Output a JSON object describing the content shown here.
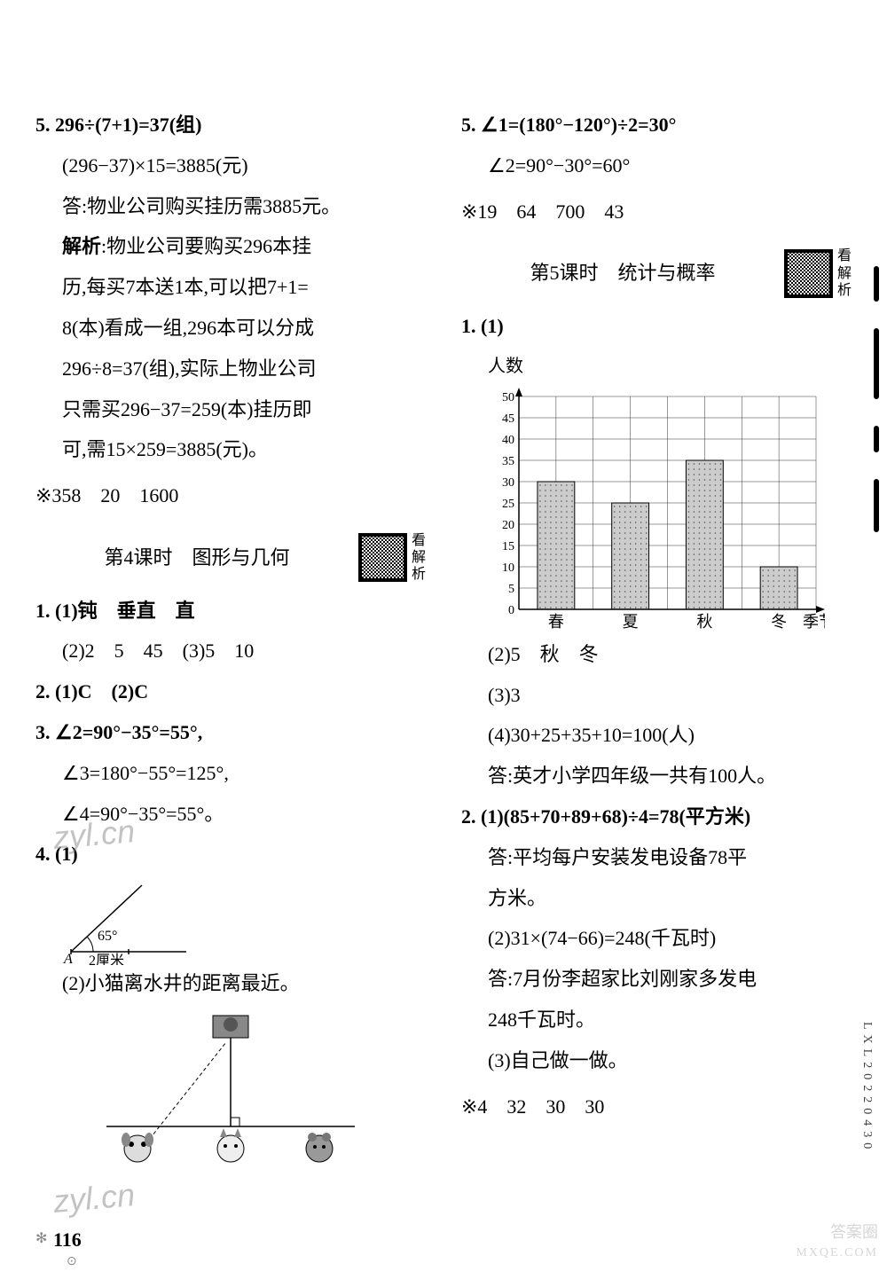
{
  "left": {
    "p5_l1": "5. 296÷(7+1)=37(组)",
    "p5_l2": "(296−37)×15=3885(元)",
    "p5_l3": "答:物业公司购买挂历需3885元。",
    "p5_l4": "解析:物业公司要购买296本挂",
    "p5_l5": "历,每买7本送1本,可以把7+1=",
    "p5_l6": "8(本)看成一组,296本可以分成",
    "p5_l7": "296÷8=37(组),实际上物业公司",
    "p5_l8": "只需买296−37=259(本)挂历即",
    "p5_l9": "可,需15×259=3885(元)。",
    "star1": "※358　20　1600",
    "lesson4_title": "第4课时　图形与几何",
    "qr_label": "看解析",
    "p1_l1": "1. (1)钝　垂直　直",
    "p1_l2": "(2)2　5　45　(3)5　10",
    "p2": "2. (1)C　(2)C",
    "p3_l1": "3. ∠2=90°−35°=55°,",
    "p3_l2": "∠3=180°−55°=125°,",
    "p3_l3": "∠4=90°−35°=55°。",
    "p4_l1": "4. (1)",
    "angle_65": "65°",
    "angle_A": "A",
    "angle_2cm": "2厘米",
    "p4_l2": "(2)小猫离水井的距离最近。"
  },
  "right": {
    "p5_l1": "5. ∠1=(180°−120°)÷2=30°",
    "p5_l2": "∠2=90°−30°=60°",
    "star2": "※19　64　700　43",
    "lesson5_title": "第5课时　统计与概率",
    "qr_label": "看解析",
    "p1_l1": "1. (1)",
    "chart": {
      "ylabel": "人数",
      "xlabel_suffix": "季节",
      "categories": [
        "春",
        "夏",
        "秋",
        "冬"
      ],
      "values": [
        30,
        25,
        35,
        10
      ],
      "ymax": 50,
      "ystep": 5,
      "bar_fill": "#cccccc",
      "grid_color": "#333333",
      "axis_color": "#000000",
      "background": "#ffffff"
    },
    "p1_l2": "(2)5　秋　冬",
    "p1_l3": "(3)3",
    "p1_l4": "(4)30+25+35+10=100(人)",
    "p1_l5": "答:英才小学四年级一共有100人。",
    "p2_l1": "2. (1)(85+70+89+68)÷4=78(平方米)",
    "p2_l2": "答:平均每户安装发电设备78平",
    "p2_l3": "方米。",
    "p2_l4": "(2)31×(74−66)=248(千瓦时)",
    "p2_l5": "答:7月份李超家比刘刚家多发电",
    "p2_l6": "248千瓦时。",
    "p2_l7": "(3)自己做一做。",
    "star3": "※4　32　30　30"
  },
  "page_number": "116",
  "side_code": "LXL20220430",
  "watermark_text": "zyl.cn",
  "corner_watermark1": "答案圈",
  "corner_watermark2": "MXQE.COM"
}
